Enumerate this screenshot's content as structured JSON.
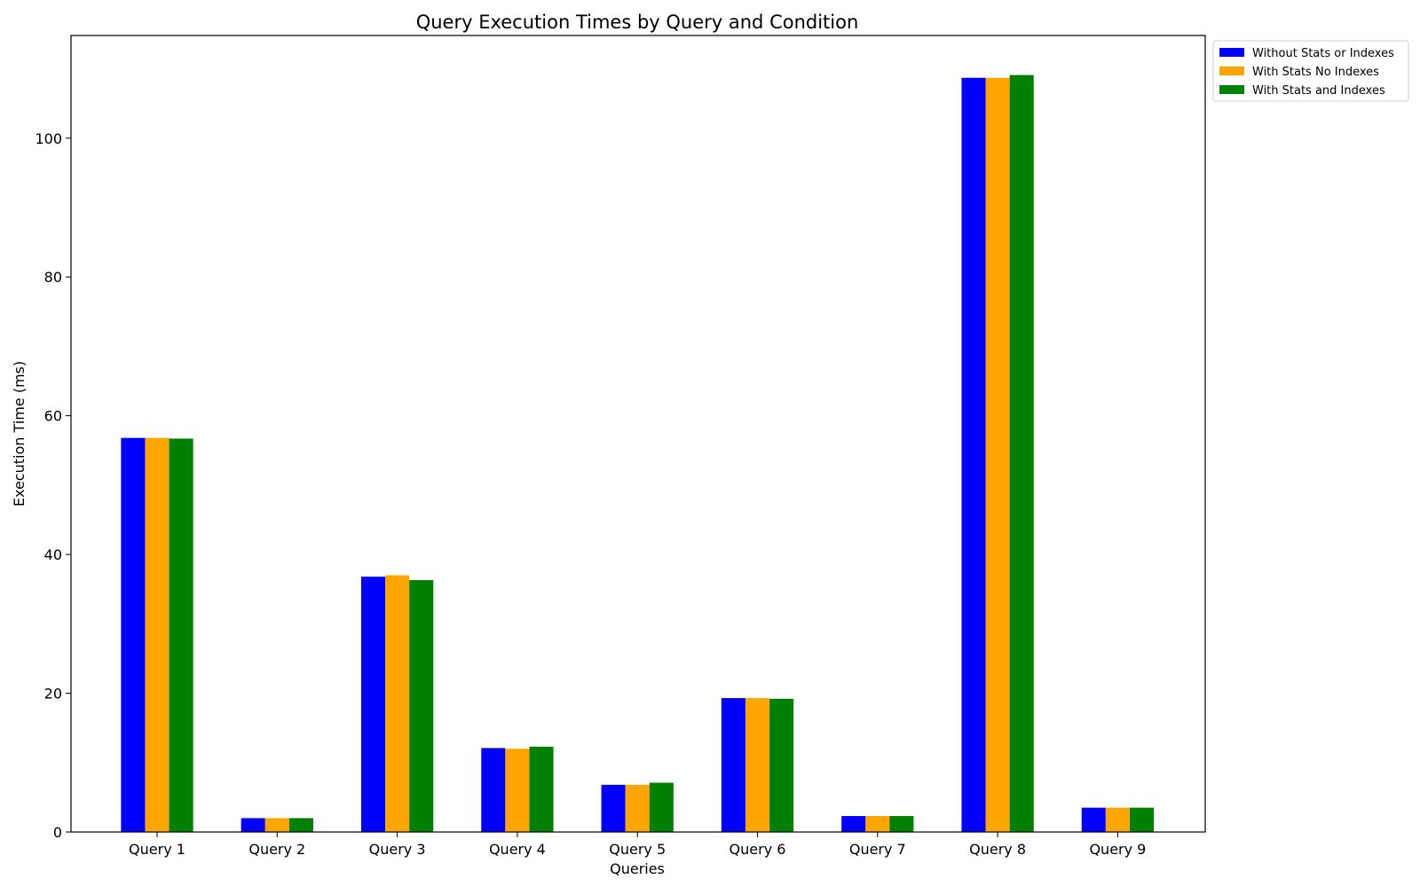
{
  "chart_data": {
    "type": "bar",
    "title": "Query Execution Times by Query and Condition",
    "xlabel": "Queries",
    "ylabel": "Execution Time (ms)",
    "categories": [
      "Query 1",
      "Query 2",
      "Query 3",
      "Query 4",
      "Query 5",
      "Query 6",
      "Query 7",
      "Query 8",
      "Query 9"
    ],
    "ylim": [
      0,
      114.8
    ],
    "yticks": [
      0,
      20,
      40,
      60,
      80,
      100
    ],
    "series": [
      {
        "name": "Without Stats or Indexes",
        "color": "#0000ff",
        "values": [
          56.8,
          2.0,
          36.8,
          12.1,
          6.8,
          19.3,
          2.3,
          108.7,
          3.5
        ]
      },
      {
        "name": "With Stats No Indexes",
        "color": "#ffa500",
        "values": [
          56.8,
          2.0,
          37.0,
          12.0,
          6.8,
          19.3,
          2.3,
          108.7,
          3.5
        ]
      },
      {
        "name": "With Stats and Indexes",
        "color": "#008000",
        "values": [
          56.7,
          2.0,
          36.3,
          12.3,
          7.1,
          19.2,
          2.3,
          109.1,
          3.5
        ]
      }
    ],
    "grid": false,
    "legend_position": "outside top-right"
  }
}
